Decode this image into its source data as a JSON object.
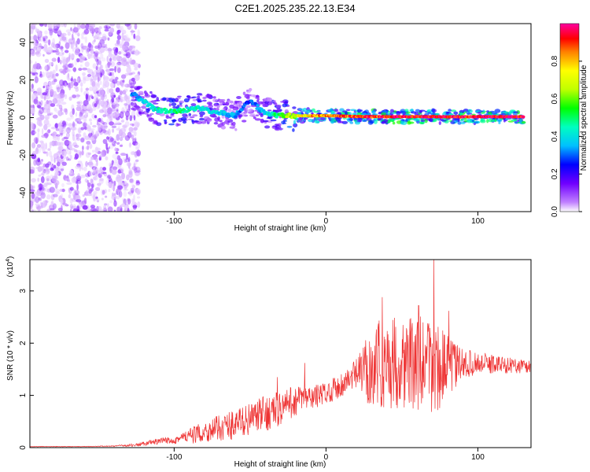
{
  "chart_data": [
    {
      "type": "heatmap",
      "title": "C2E1.2025.235.22.13.E34",
      "xlabel": "Height of straight line (km)",
      "ylabel": "Frequency (Hz)",
      "xlim": [
        -195,
        135
      ],
      "ylim": [
        -50,
        50
      ],
      "x_ticks": [
        -100,
        0,
        100
      ],
      "x_tick_labels": [
        "-100",
        "0",
        "100"
      ],
      "y_ticks": [
        -40,
        -20,
        0,
        20,
        40
      ],
      "y_tick_labels": [
        "-40",
        "-20",
        "0",
        "20",
        "40"
      ],
      "colorbar": {
        "label": "Normalized spectral amplitude",
        "range": [
          0,
          1
        ],
        "ticks": [
          0,
          0.2,
          0.4,
          0.6,
          0.8
        ],
        "tick_labels": [
          "0.0",
          "0.2",
          "0.4",
          "0.6",
          "0.8"
        ],
        "colors": [
          "#ffffff",
          "#c080ff",
          "#7000ff",
          "#0000ff",
          "#00c0ff",
          "#00ffc0",
          "#00ff00",
          "#c0ff00",
          "#ffff00",
          "#ff8000",
          "#ff0000",
          "#ff00a0"
        ]
      },
      "noise_region": {
        "x_range": [
          -195,
          -123
        ],
        "freq_range": [
          -50,
          50
        ]
      },
      "ridge": [
        {
          "x": -128,
          "f": 13,
          "a": 0.35
        },
        {
          "x": -112,
          "f": 4,
          "a": 0.45
        },
        {
          "x": -100,
          "f": 3,
          "a": 0.5
        },
        {
          "x": -85,
          "f": 5,
          "a": 0.45
        },
        {
          "x": -72,
          "f": 3,
          "a": 0.4
        },
        {
          "x": -60,
          "f": 1,
          "a": 0.35
        },
        {
          "x": -50,
          "f": 9,
          "a": 0.3
        },
        {
          "x": -40,
          "f": 2,
          "a": 0.4
        },
        {
          "x": -30,
          "f": 1,
          "a": 0.55
        },
        {
          "x": -15,
          "f": 1,
          "a": 0.75
        },
        {
          "x": 0,
          "f": 1,
          "a": 0.85
        },
        {
          "x": 25,
          "f": 0.5,
          "a": 0.9
        },
        {
          "x": 50,
          "f": 0.5,
          "a": 0.95
        },
        {
          "x": 75,
          "f": 0.5,
          "a": 0.95
        },
        {
          "x": 100,
          "f": 0.5,
          "a": 0.95
        },
        {
          "x": 130,
          "f": 0.5,
          "a": 0.95
        }
      ]
    },
    {
      "type": "line",
      "xlabel": "Height of straight line (km)",
      "ylabel": "SNR (10 * v/v)",
      "y_scale_label": "(x10",
      "y_scale_exp": "4",
      "y_scale_close": ")",
      "xlim": [
        -195,
        135
      ],
      "ylim": [
        0,
        3.6
      ],
      "x_ticks": [
        -100,
        0,
        100
      ],
      "x_tick_labels": [
        "-100",
        "0",
        "100"
      ],
      "y_ticks": [
        0,
        1,
        2,
        3
      ],
      "y_tick_labels": [
        "0",
        "1",
        "2",
        "3"
      ],
      "line_color": "#ee3333",
      "series": [
        {
          "name": "SNR",
          "x": [
            -195,
            -180,
            -160,
            -140,
            -125,
            -115,
            -100,
            -90,
            -80,
            -70,
            -60,
            -50,
            -40,
            -30,
            -20,
            -10,
            0,
            10,
            20,
            30,
            40,
            50,
            60,
            70,
            80,
            90,
            100,
            110,
            120,
            135
          ],
          "values": [
            0.02,
            0.02,
            0.02,
            0.03,
            0.05,
            0.1,
            0.15,
            0.22,
            0.3,
            0.38,
            0.45,
            0.55,
            0.65,
            0.75,
            0.9,
            0.95,
            1.05,
            1.2,
            1.4,
            1.55,
            1.62,
            1.65,
            1.6,
            1.55,
            1.55,
            1.6,
            1.62,
            1.6,
            1.58,
            1.55
          ],
          "noise": [
            0.005,
            0.005,
            0.005,
            0.01,
            0.03,
            0.05,
            0.08,
            0.15,
            0.2,
            0.25,
            0.3,
            0.3,
            0.35,
            0.35,
            0.3,
            0.25,
            0.2,
            0.25,
            0.3,
            0.8,
            0.9,
            0.9,
            0.9,
            1.0,
            0.6,
            0.3,
            0.2,
            0.2,
            0.15,
            0.15
          ],
          "peaks": [
            {
              "x": -32,
              "y": 1.35
            },
            {
              "x": -14,
              "y": 1.62
            },
            {
              "x": 37,
              "y": 2.88
            },
            {
              "x": 61,
              "y": 2.72
            },
            {
              "x": 71,
              "y": 3.6
            },
            {
              "x": 81,
              "y": 2.62
            }
          ]
        }
      ]
    }
  ]
}
